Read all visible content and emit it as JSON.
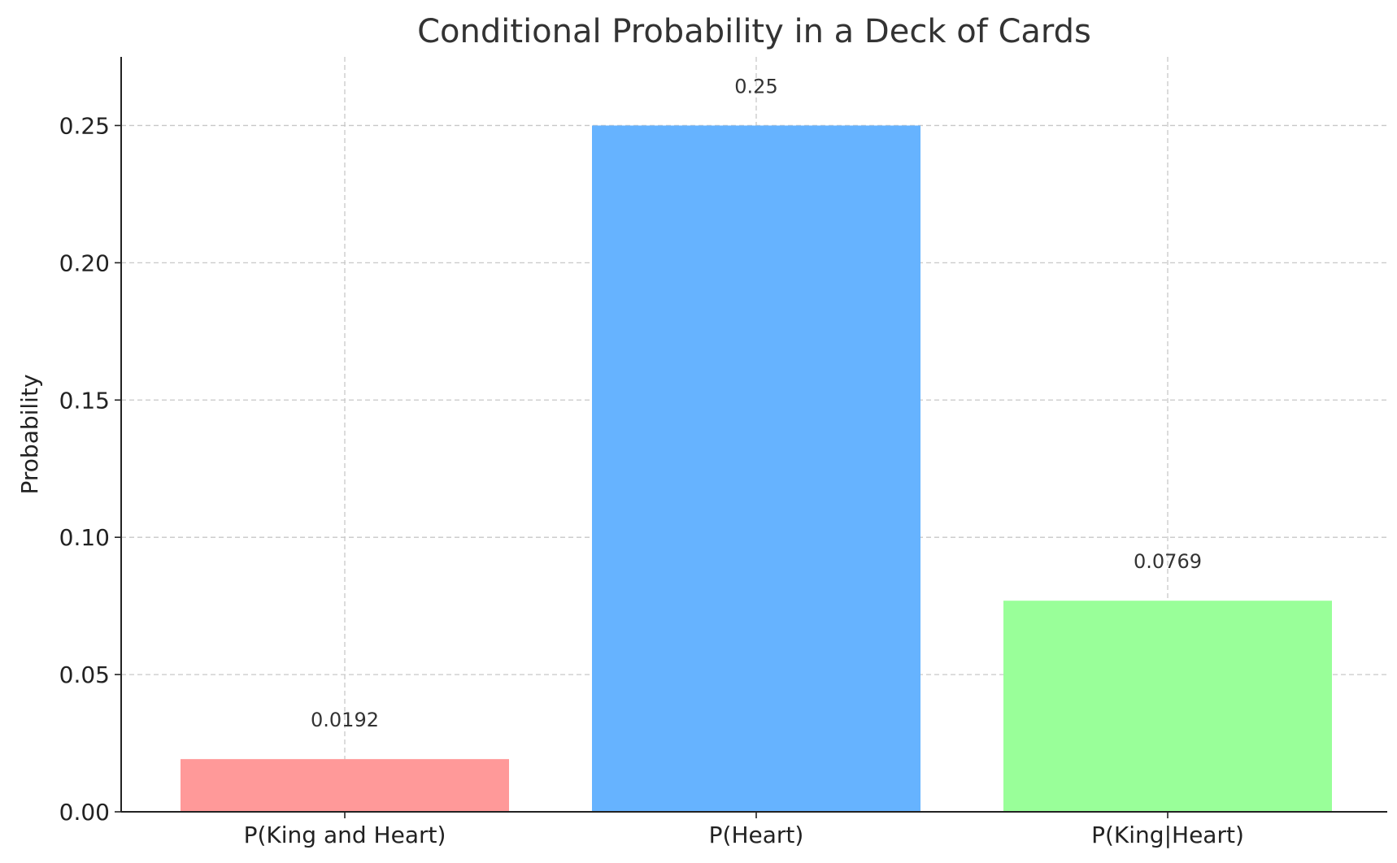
{
  "chart_data": {
    "type": "bar",
    "title": "Conditional Probability in a Deck of Cards",
    "xlabel": "",
    "ylabel": "Probability",
    "categories": [
      "P(King and Heart)",
      "P(Heart)",
      "P(King|Heart)"
    ],
    "values": [
      0.0192,
      0.25,
      0.0769
    ],
    "data_labels": [
      "0.0192",
      "0.25",
      "0.0769"
    ],
    "colors": [
      "#ff9999",
      "#66b3ff",
      "#99ff99"
    ],
    "ylim": [
      0,
      0.275
    ],
    "yticks": [
      0.0,
      0.05,
      0.1,
      0.15,
      0.2,
      0.25
    ],
    "ytick_labels": [
      "0.00",
      "0.05",
      "0.10",
      "0.15",
      "0.20",
      "0.25"
    ],
    "grid": true,
    "legend": "none"
  }
}
